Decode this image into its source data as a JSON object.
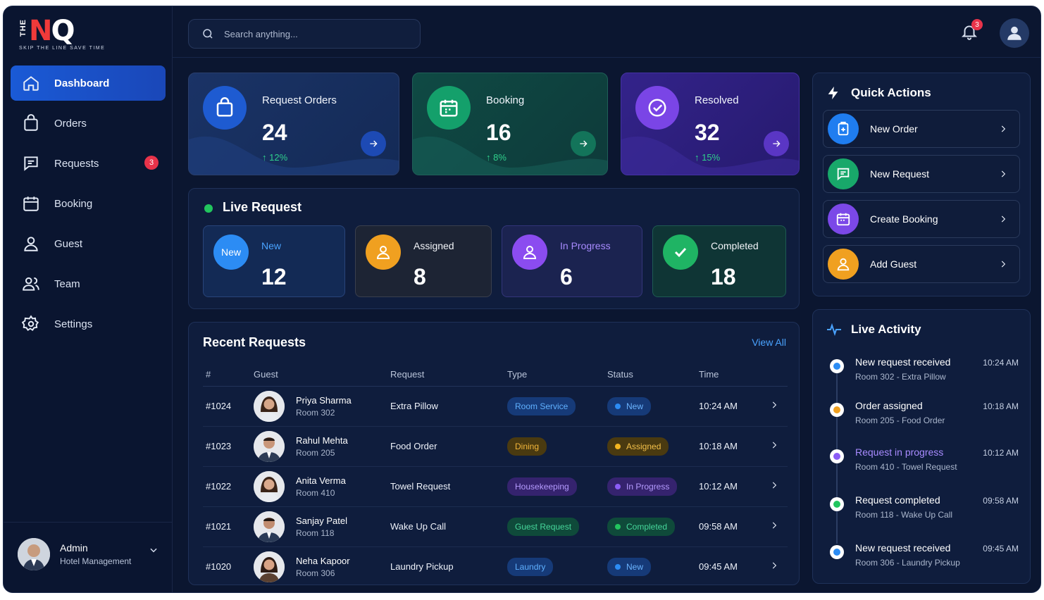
{
  "brand": {
    "the": "THE",
    "n": "N",
    "q": "Q",
    "tagline": "SKIP THE LINE SAVE TIME"
  },
  "sidebar": {
    "items": [
      {
        "label": "Dashboard",
        "icon": "home-icon",
        "active": true
      },
      {
        "label": "Orders",
        "icon": "bag-icon"
      },
      {
        "label": "Requests",
        "icon": "message-icon",
        "badge": "3"
      },
      {
        "label": "Booking",
        "icon": "calendar-icon"
      },
      {
        "label": "Guest",
        "icon": "user-icon"
      },
      {
        "label": "Team",
        "icon": "users-icon"
      },
      {
        "label": "Settings",
        "icon": "gear-icon"
      }
    ],
    "profile": {
      "name": "Admin",
      "role": "Hotel Management"
    }
  },
  "header": {
    "search_placeholder": "Search anything...",
    "notification_count": "3"
  },
  "stats": [
    {
      "label": "Request Orders",
      "value": "24",
      "change": "↑ 12%",
      "color": "#1d4aa8"
    },
    {
      "label": "Booking",
      "value": "16",
      "change": "↑ 8%",
      "color": "#0f6b52"
    },
    {
      "label": "Resolved",
      "value": "32",
      "change": "↑ 15%",
      "color": "#5b2fd0"
    }
  ],
  "live_request": {
    "title": "Live Request",
    "cards": [
      {
        "icon_text": "New",
        "label": "New",
        "value": "12"
      },
      {
        "label": "Assigned",
        "value": "8"
      },
      {
        "label": "In Progress",
        "value": "6"
      },
      {
        "label": "Completed",
        "value": "18"
      }
    ]
  },
  "recent_requests": {
    "title": "Recent Requests",
    "view_all": "View All",
    "columns": [
      "#",
      "Guest",
      "Request",
      "Type",
      "Status",
      "Time"
    ],
    "rows": [
      {
        "id": "#1024",
        "name": "Priya Sharma",
        "room": "Room 302",
        "request": "Extra Pillow",
        "type": "Room Service",
        "status": "New",
        "time": "10:24 AM"
      },
      {
        "id": "#1023",
        "name": "Rahul Mehta",
        "room": "Room 205",
        "request": "Food Order",
        "type": "Dining",
        "status": "Assigned",
        "time": "10:18 AM"
      },
      {
        "id": "#1022",
        "name": "Anita Verma",
        "room": "Room 410",
        "request": "Towel Request",
        "type": "Housekeeping",
        "status": "In Progress",
        "time": "10:12 AM"
      },
      {
        "id": "#1021",
        "name": "Sanjay Patel",
        "room": "Room 118",
        "request": "Wake Up Call",
        "type": "Guest Request",
        "status": "Completed",
        "time": "09:58 AM"
      },
      {
        "id": "#1020",
        "name": "Neha Kapoor",
        "room": "Room 306",
        "request": "Laundry Pickup",
        "type": "Laundry",
        "status": "New",
        "time": "09:45 AM"
      }
    ]
  },
  "quick_actions": {
    "title": "Quick Actions",
    "items": [
      {
        "label": "New Order"
      },
      {
        "label": "New Request"
      },
      {
        "label": "Create Booking"
      },
      {
        "label": "Add Guest"
      }
    ]
  },
  "live_activity": {
    "title": "Live Activity",
    "items": [
      {
        "title": "New request received",
        "sub": "Room 302 - Extra Pillow",
        "time": "10:24 AM"
      },
      {
        "title": "Order assigned",
        "sub": "Room 205 - Food Order",
        "time": "10:18 AM"
      },
      {
        "title": "Request in progress",
        "sub": "Room 410 - Towel Request",
        "time": "10:12 AM"
      },
      {
        "title": "Request completed",
        "sub": "Room 118 - Wake Up Call",
        "time": "09:58 AM"
      },
      {
        "title": "New request received",
        "sub": "Room 306 - Laundry Pickup",
        "time": "09:45 AM"
      }
    ]
  }
}
